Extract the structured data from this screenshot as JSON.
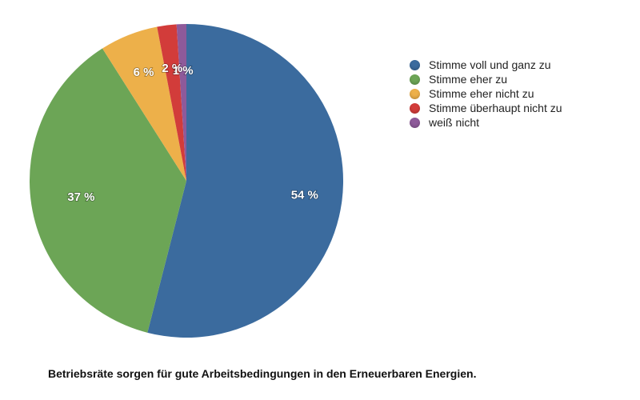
{
  "chart_data": {
    "type": "pie",
    "title": "Betriebsräte sorgen für gute Arbeitsbedingungen in den Erneuerbaren Energien.",
    "categories": [
      "Stimme voll und ganz zu",
      "Stimme eher zu",
      "Stimme eher nicht zu",
      "Stimme überhaupt nicht zu",
      "weiß nicht"
    ],
    "values": [
      54,
      37,
      6,
      2,
      1
    ],
    "labels": [
      "54 %",
      "37 %",
      "6 %",
      "2 %",
      "1 %"
    ],
    "colors": [
      "#3B6B9E",
      "#6CA556",
      "#EDB04A",
      "#D23C3A",
      "#8E5A9A"
    ],
    "legend_position": "right"
  }
}
